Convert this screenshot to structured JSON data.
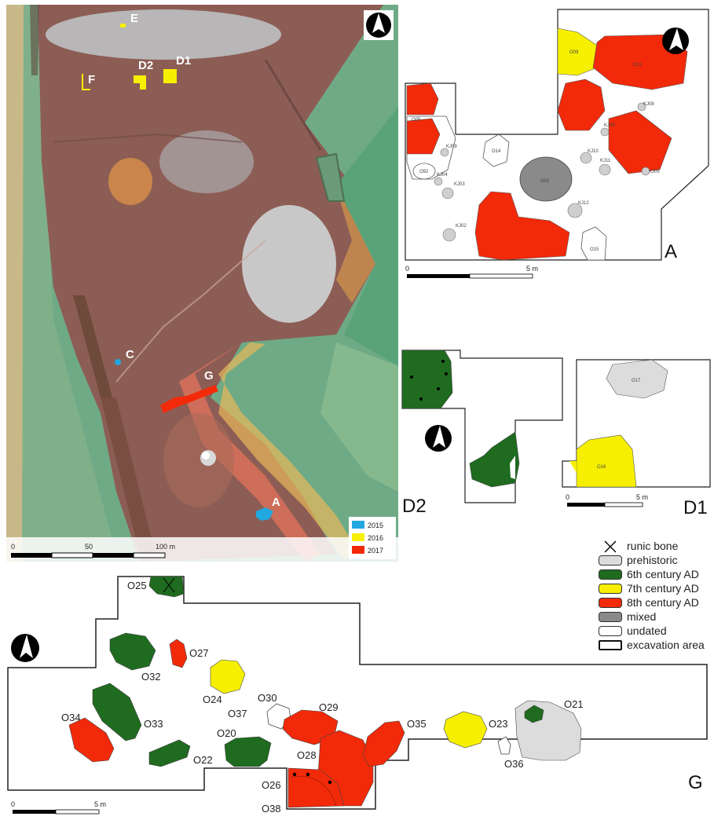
{
  "colors": {
    "prehistoric": "#dcdcdc",
    "c6": "#1f6b1f",
    "c7": "#f6f000",
    "c8": "#f22a0a",
    "mixed": "#8a8a8a",
    "undated": "#ffffff",
    "y2015": "#21a8e0",
    "y2016": "#f6f000",
    "y2017": "#f22a0a"
  },
  "site_map": {
    "labels": {
      "E": "E",
      "F": "F",
      "D2": "D2",
      "D1": "D1",
      "C": "C",
      "G": "G",
      "A": "A"
    },
    "scale": {
      "t0": "0",
      "t1": "50",
      "t2": "100 m"
    },
    "year_legend": [
      "2015",
      "2016",
      "2017"
    ],
    "north_icon": "north-arrow-icon"
  },
  "plan_A": {
    "title": "A",
    "scale": {
      "t0": "0",
      "t1": "5 m"
    },
    "features": [
      "O09",
      "O11",
      "O05",
      "O92",
      "O14",
      "O01",
      "KJ09",
      "KJ04",
      "KJ03",
      "KJ02",
      "KJ12",
      "KJ08",
      "KJ06",
      "KJ10",
      "KJ11",
      "KJ05",
      "O15"
    ]
  },
  "plan_D2": {
    "title": "D2"
  },
  "plan_D1": {
    "title": "D1",
    "scale": {
      "t0": "0",
      "t1": "5 m"
    },
    "features": [
      "O17",
      "O16"
    ]
  },
  "legend": [
    {
      "key": "runic",
      "label": "runic bone"
    },
    {
      "key": "prehistoric",
      "label": "prehistoric"
    },
    {
      "key": "c6",
      "label": "6th century AD"
    },
    {
      "key": "c7",
      "label": "7th century AD"
    },
    {
      "key": "c8",
      "label": "8th century AD"
    },
    {
      "key": "mixed",
      "label": "mixed"
    },
    {
      "key": "undated",
      "label": "undated"
    },
    {
      "key": "area",
      "label": "excavation area"
    }
  ],
  "plan_G": {
    "title": "G",
    "scale": {
      "t0": "0",
      "t1": "5 m"
    },
    "features": {
      "O25": "O25",
      "O27": "O27",
      "O32": "O32",
      "O24": "O24",
      "O30": "O30",
      "O37": "O37",
      "O29": "O29",
      "O34": "O34",
      "O33": "O33",
      "O20": "O20",
      "O22": "O22",
      "O28": "O28",
      "O26": "O26",
      "O38": "O38",
      "O35": "O35",
      "O23": "O23",
      "O21": "O21",
      "O36": "O36"
    }
  }
}
